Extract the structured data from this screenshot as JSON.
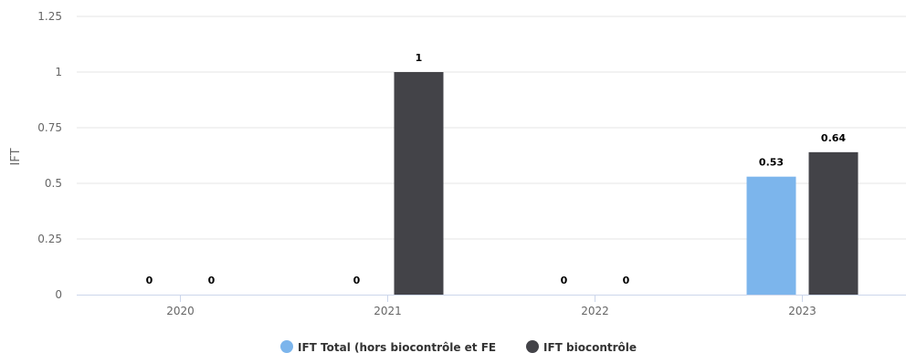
{
  "chart_data": {
    "type": "bar",
    "title": "",
    "xlabel": "",
    "ylabel": "IFT",
    "ylim": [
      0,
      1.25
    ],
    "yticks": [
      "0",
      "0.25",
      "0.5",
      "0.75",
      "1",
      "1.25"
    ],
    "categories": [
      "2020",
      "2021",
      "2022",
      "2023"
    ],
    "series": [
      {
        "name": "IFT Total (hors biocontrôle et FE)",
        "legend_text": "IFT Total (hors biocontrôle et FE",
        "color": "#7cb5ec",
        "values": [
          0,
          0,
          0,
          0.53
        ],
        "labels": [
          "0",
          "0",
          "0",
          "0.53"
        ]
      },
      {
        "name": "IFT biocontrôle",
        "legend_text": "IFT biocontrôle",
        "color": "#434348",
        "values": [
          0,
          1,
          0,
          0.64
        ],
        "labels": [
          "0",
          "1",
          "0",
          "0.64"
        ]
      }
    ],
    "grid": true,
    "legend_position": "bottom-center"
  }
}
